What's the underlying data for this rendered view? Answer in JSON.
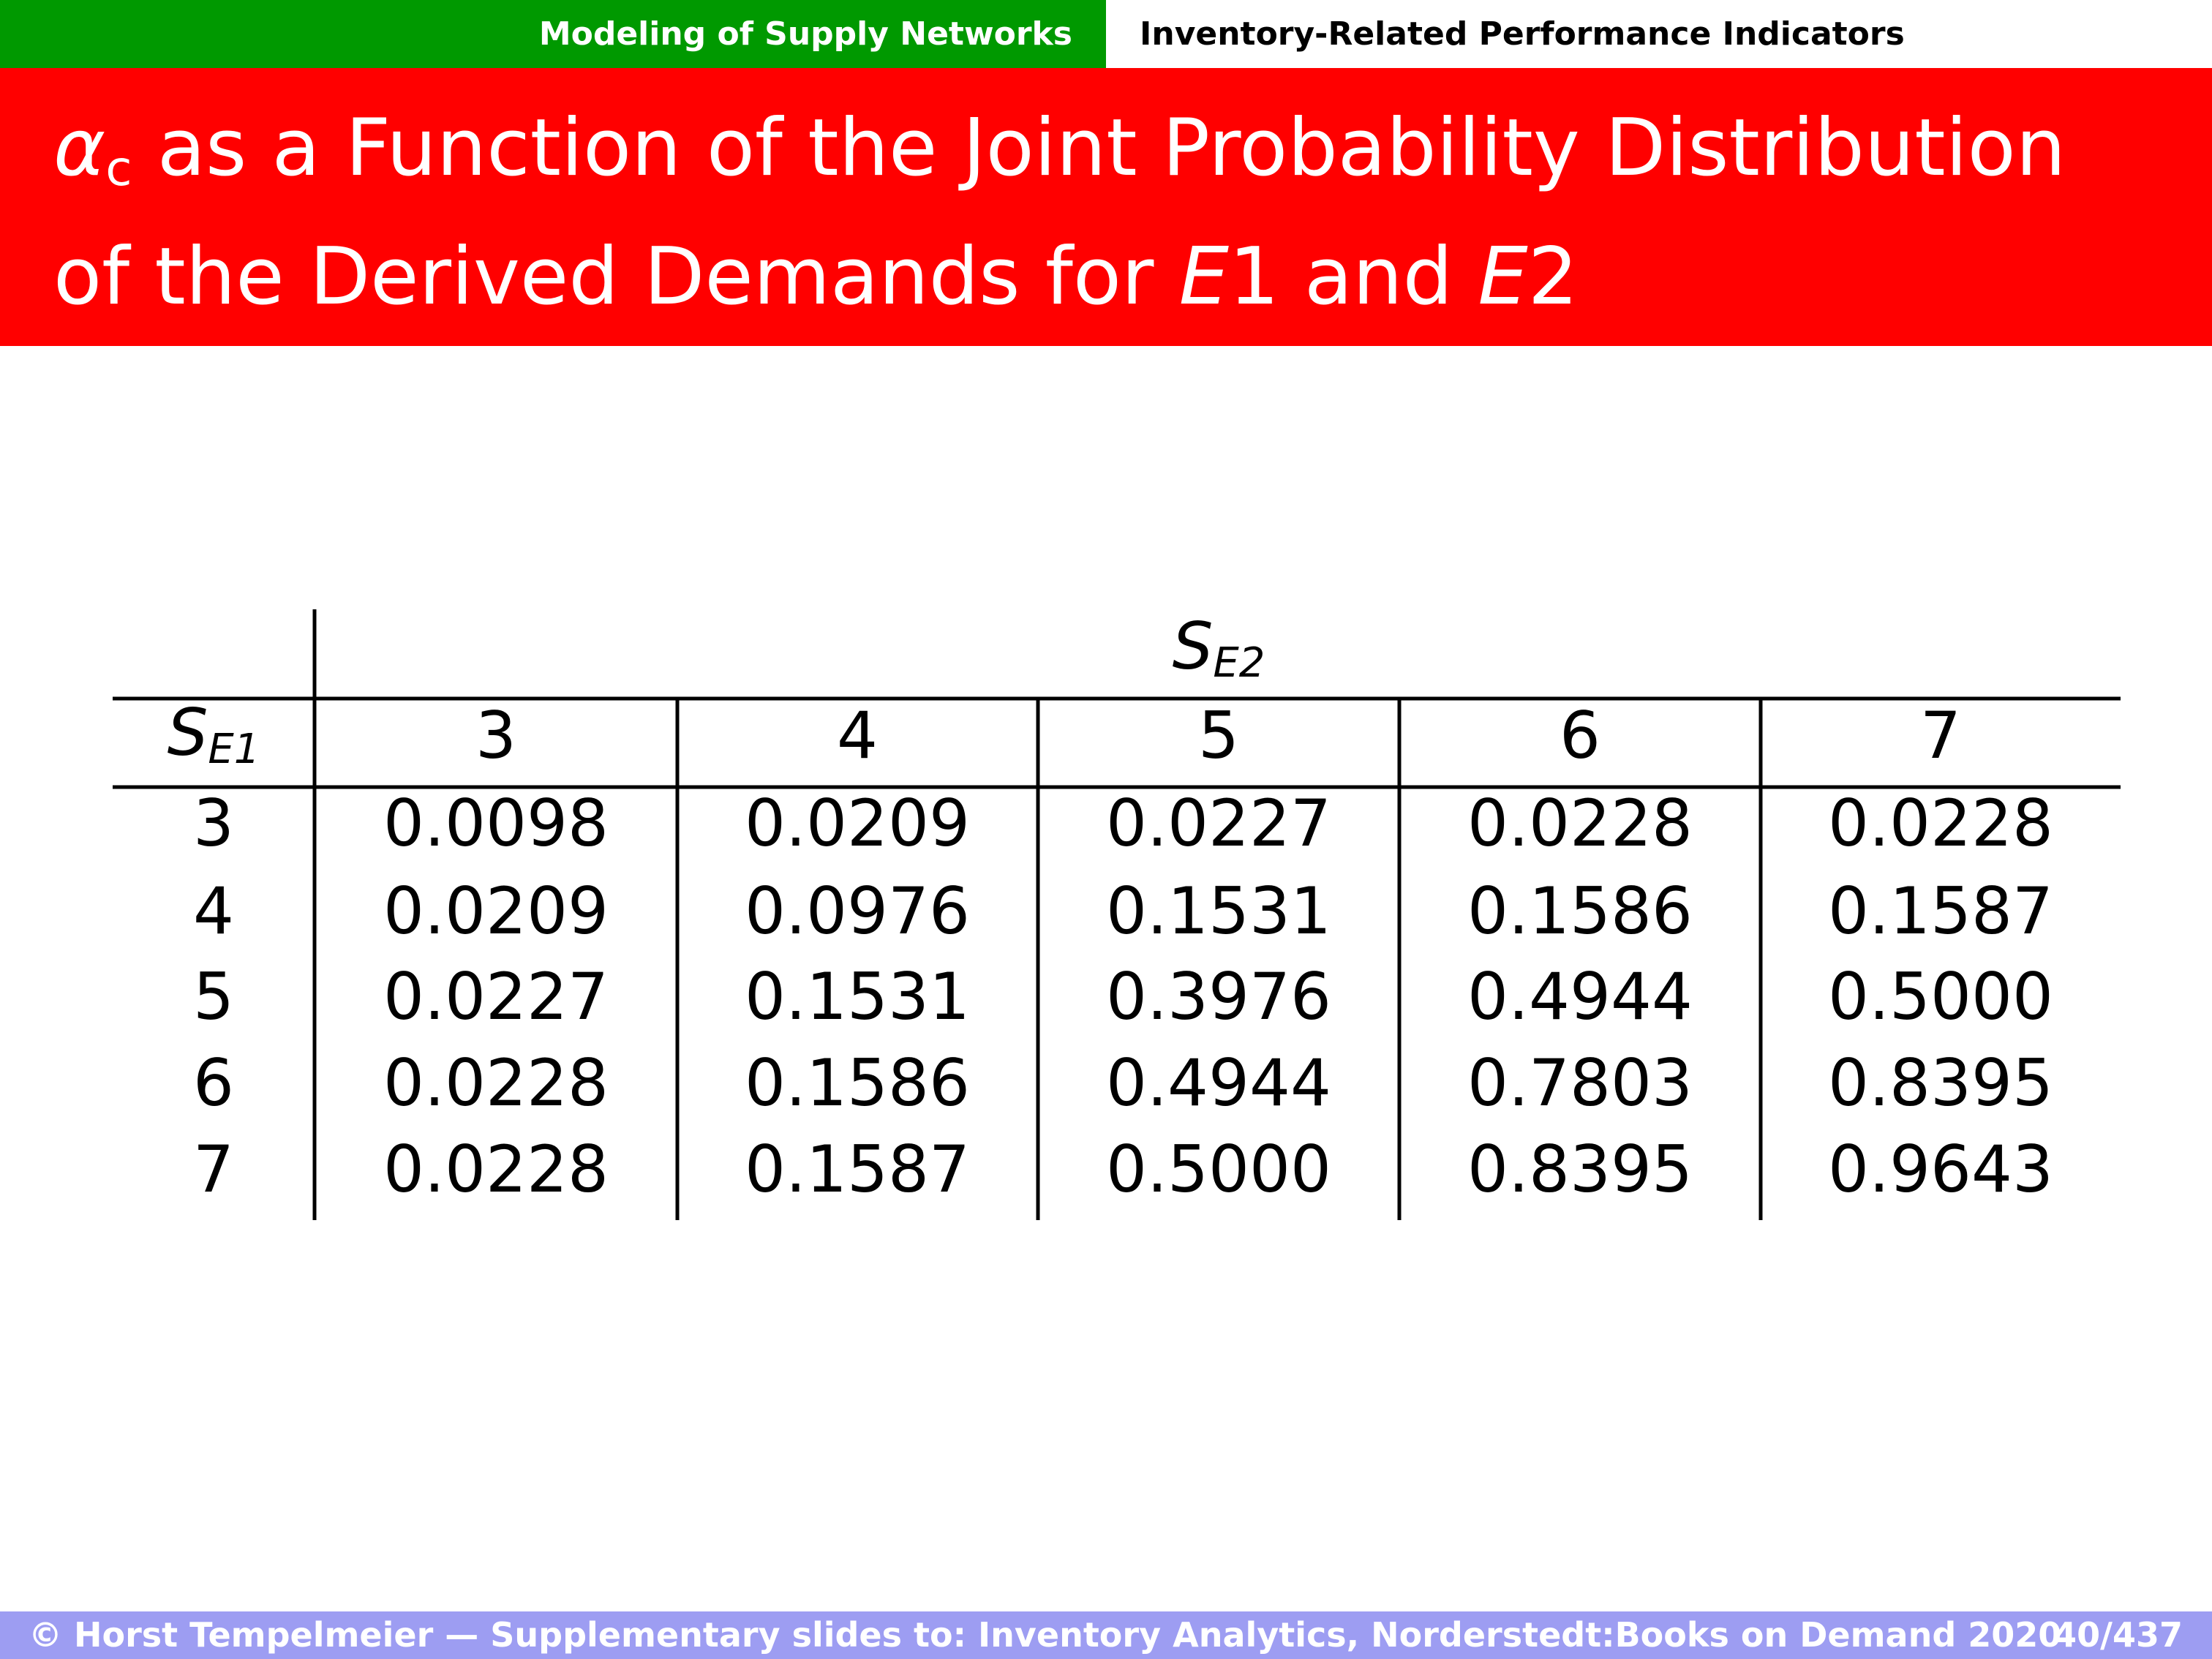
{
  "header": {
    "section": "Modeling of Supply Networks",
    "subsection": "Inventory-Related Performance Indicators"
  },
  "title": {
    "parts": [
      "α",
      "c",
      " as a Function of the Joint Probability Distribution of the Derived Demands for ",
      "E",
      "1",
      " and ",
      "E",
      "2"
    ]
  },
  "table": {
    "column_group": {
      "symbol": "S",
      "sub": "E2"
    },
    "row_header": {
      "symbol": "S",
      "sub": "E1"
    },
    "columns": [
      "3",
      "4",
      "5",
      "6",
      "7"
    ],
    "rows": [
      {
        "label": "3",
        "cells": [
          "0.0098",
          "0.0209",
          "0.0227",
          "0.0228",
          "0.0228"
        ]
      },
      {
        "label": "4",
        "cells": [
          "0.0209",
          "0.0976",
          "0.1531",
          "0.1586",
          "0.1587"
        ]
      },
      {
        "label": "5",
        "cells": [
          "0.0227",
          "0.1531",
          "0.3976",
          "0.4944",
          "0.5000"
        ]
      },
      {
        "label": "6",
        "cells": [
          "0.0228",
          "0.1586",
          "0.4944",
          "0.7803",
          "0.8395"
        ]
      },
      {
        "label": "7",
        "cells": [
          "0.0228",
          "0.1587",
          "0.5000",
          "0.8395",
          "0.9643"
        ]
      }
    ]
  },
  "footer": {
    "text": "© Horst Tempelmeier — Supplementary slides to: Inventory Analytics, Norderstedt:Books on Demand 2020",
    "page": "40/437"
  }
}
